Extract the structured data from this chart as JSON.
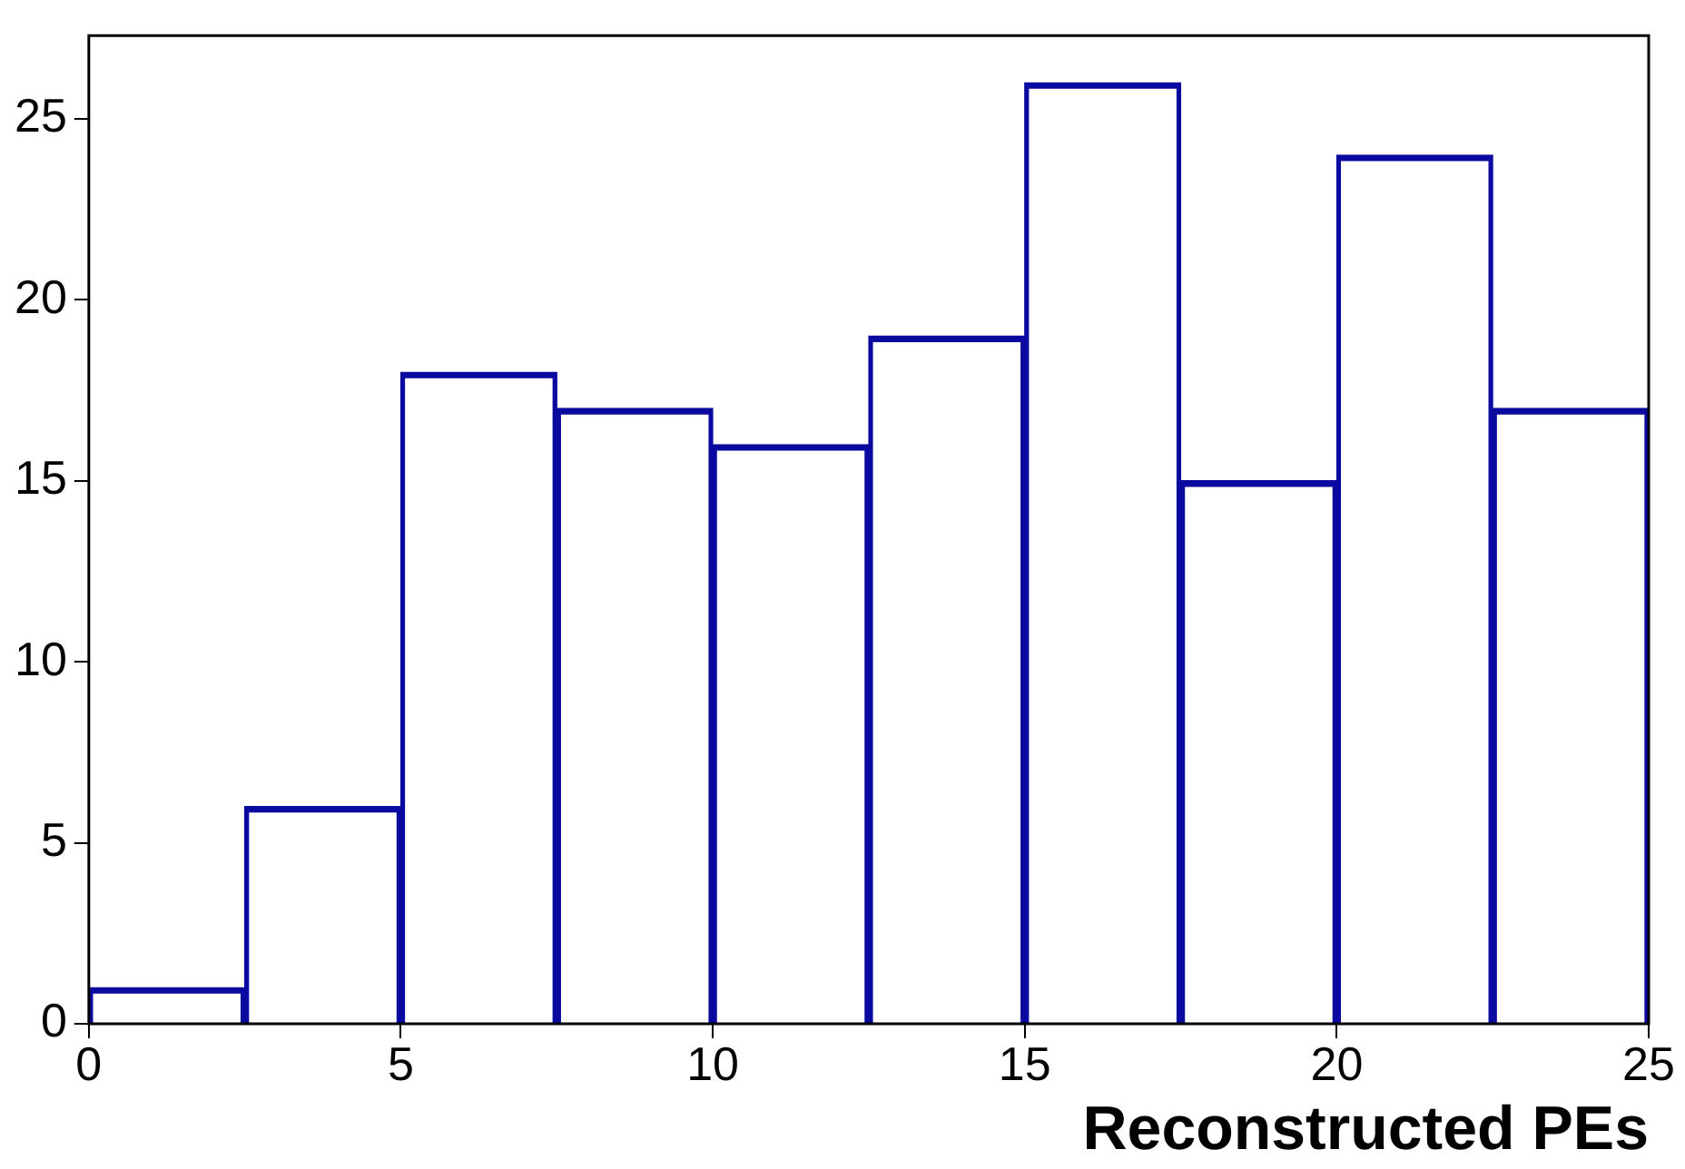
{
  "chart_data": {
    "type": "histogram",
    "xlabel": "Reconstructed PEs",
    "bins": [
      0,
      2.5,
      5,
      7.5,
      10,
      12.5,
      15,
      17.5,
      20,
      22.5,
      25
    ],
    "values": [
      1,
      6,
      18,
      17,
      16,
      19,
      26,
      15,
      24,
      17
    ],
    "color": "#0a0aa0",
    "xlim": [
      0,
      25
    ],
    "xticks": [
      0,
      5,
      10,
      15,
      20,
      25
    ],
    "ylim": [
      0,
      27.3
    ],
    "yticks": [
      0,
      5,
      10,
      15,
      20,
      25
    ],
    "grid": false,
    "legend": false
  }
}
